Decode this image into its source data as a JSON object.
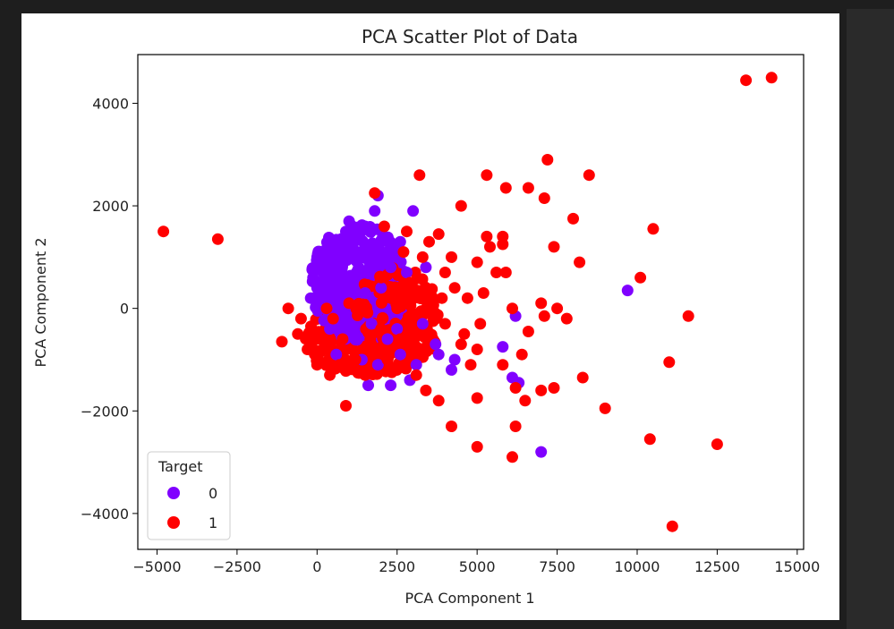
{
  "chart_data": {
    "type": "scatter",
    "title": "PCA Scatter Plot of Data",
    "xlabel": "PCA Component 1",
    "ylabel": "PCA Component 2",
    "xlim": [
      -5600,
      15200
    ],
    "ylim": [
      -4700,
      4950
    ],
    "xticks": [
      -5000,
      -2500,
      0,
      2500,
      5000,
      7500,
      10000,
      12500,
      15000
    ],
    "xtick_labels": [
      "−5000",
      "−2500",
      "0",
      "2500",
      "5000",
      "7500",
      "10000",
      "12500",
      "15000"
    ],
    "yticks": [
      -4000,
      -2000,
      0,
      2000,
      4000
    ],
    "ytick_labels": [
      "−4000",
      "−2000",
      "0",
      "2000",
      "4000"
    ],
    "grid": false,
    "legend": {
      "title": "Target",
      "placement": "lower-left",
      "entries": [
        {
          "label": "0",
          "color": "#8000ff"
        },
        {
          "label": "1",
          "color": "#ff0000"
        }
      ]
    },
    "series": [
      {
        "name": "0",
        "color": "#8000ff",
        "points": [
          [
            1000,
            1700
          ],
          [
            1900,
            2200
          ],
          [
            1800,
            1900
          ],
          [
            3000,
            1900
          ],
          [
            1500,
            1600
          ],
          [
            2600,
            1300
          ],
          [
            500,
            1200
          ],
          [
            900,
            1500
          ],
          [
            1200,
            1100
          ],
          [
            300,
            900
          ],
          [
            200,
            700
          ],
          [
            0,
            400
          ],
          [
            -200,
            200
          ],
          [
            800,
            600
          ],
          [
            1300,
            800
          ],
          [
            1900,
            1000
          ],
          [
            2300,
            800
          ],
          [
            2800,
            700
          ],
          [
            3400,
            800
          ],
          [
            1500,
            300
          ],
          [
            900,
            -200
          ],
          [
            1700,
            -300
          ],
          [
            2200,
            -600
          ],
          [
            2600,
            -900
          ],
          [
            1900,
            -1100
          ],
          [
            1600,
            -1500
          ],
          [
            2300,
            -1500
          ],
          [
            2900,
            -1400
          ],
          [
            3100,
            -1100
          ],
          [
            3700,
            -700
          ],
          [
            3800,
            -900
          ],
          [
            4200,
            -1200
          ],
          [
            4300,
            -1000
          ],
          [
            5800,
            -750
          ],
          [
            6100,
            -1350
          ],
          [
            6200,
            -150
          ],
          [
            6300,
            -1450
          ],
          [
            7000,
            -2800
          ],
          [
            9700,
            350
          ],
          [
            700,
            300
          ],
          [
            1200,
            -600
          ],
          [
            400,
            -400
          ],
          [
            2500,
            -400
          ],
          [
            3300,
            -300
          ],
          [
            1000,
            1000
          ],
          [
            2000,
            400
          ],
          [
            600,
            -900
          ],
          [
            1400,
            -1000
          ]
        ]
      },
      {
        "name": "1",
        "color": "#ff0000",
        "points": [
          [
            -4800,
            1500
          ],
          [
            -3100,
            1350
          ],
          [
            -1100,
            -650
          ],
          [
            -900,
            0
          ],
          [
            -600,
            -500
          ],
          [
            -300,
            -800
          ],
          [
            0,
            -1100
          ],
          [
            400,
            -1300
          ],
          [
            900,
            -1900
          ],
          [
            1800,
            2250
          ],
          [
            2100,
            1600
          ],
          [
            2800,
            1500
          ],
          [
            3200,
            2600
          ],
          [
            3500,
            1300
          ],
          [
            3800,
            1450
          ],
          [
            3300,
            1000
          ],
          [
            4200,
            1000
          ],
          [
            4000,
            700
          ],
          [
            4500,
            2000
          ],
          [
            4300,
            400
          ],
          [
            4700,
            200
          ],
          [
            5000,
            900
          ],
          [
            5200,
            300
          ],
          [
            5300,
            1400
          ],
          [
            5400,
            1200
          ],
          [
            5600,
            700
          ],
          [
            5800,
            1400
          ],
          [
            5800,
            1250
          ],
          [
            5900,
            700
          ],
          [
            5300,
            2600
          ],
          [
            5900,
            2350
          ],
          [
            6100,
            0
          ],
          [
            6600,
            2350
          ],
          [
            7000,
            100
          ],
          [
            7100,
            2150
          ],
          [
            7200,
            2900
          ],
          [
            7400,
            1200
          ],
          [
            7100,
            -150
          ],
          [
            7500,
            0
          ],
          [
            7800,
            -200
          ],
          [
            8000,
            1750
          ],
          [
            8200,
            900
          ],
          [
            8500,
            2600
          ],
          [
            6600,
            -450
          ],
          [
            6400,
            -900
          ],
          [
            6200,
            -1550
          ],
          [
            6200,
            -2300
          ],
          [
            6100,
            -2900
          ],
          [
            7000,
            -1600
          ],
          [
            7400,
            -1550
          ],
          [
            8300,
            -1350
          ],
          [
            9000,
            -1950
          ],
          [
            10100,
            600
          ],
          [
            10500,
            1550
          ],
          [
            10400,
            -2550
          ],
          [
            11000,
            -1050
          ],
          [
            11100,
            -4250
          ],
          [
            11600,
            -150
          ],
          [
            12500,
            -2650
          ],
          [
            13400,
            4450
          ],
          [
            14200,
            4500
          ],
          [
            5000,
            -800
          ],
          [
            5100,
            -300
          ],
          [
            5000,
            -1750
          ],
          [
            4800,
            -1100
          ],
          [
            5000,
            -2700
          ],
          [
            4200,
            -2300
          ],
          [
            3800,
            -1800
          ],
          [
            3400,
            -1600
          ],
          [
            3100,
            -1300
          ],
          [
            4600,
            -500
          ],
          [
            4000,
            -300
          ],
          [
            3600,
            -100
          ],
          [
            2500,
            0
          ],
          [
            2000,
            -400
          ],
          [
            1700,
            -700
          ],
          [
            1200,
            -1000
          ],
          [
            800,
            -600
          ],
          [
            500,
            -200
          ],
          [
            300,
            0
          ],
          [
            -500,
            -200
          ],
          [
            2300,
            200
          ],
          [
            2900,
            500
          ],
          [
            3200,
            200
          ],
          [
            2600,
            -600
          ],
          [
            2200,
            -1000
          ],
          [
            1500,
            -1300
          ],
          [
            1000,
            100
          ],
          [
            700,
            -1100
          ],
          [
            2000,
            600
          ],
          [
            4500,
            -700
          ],
          [
            5800,
            -1100
          ],
          [
            6500,
            -1800
          ],
          [
            3900,
            200
          ],
          [
            2700,
            1100
          ]
        ]
      }
    ]
  }
}
